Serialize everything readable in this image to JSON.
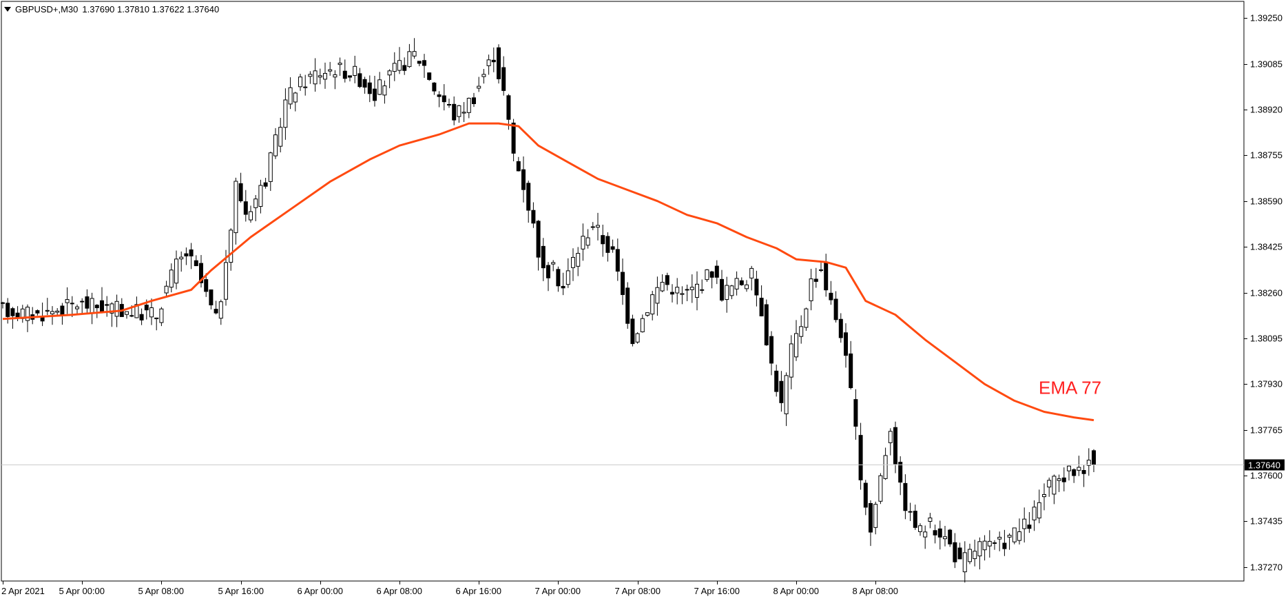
{
  "header": {
    "symbol": "GBPUSD+,M30",
    "ohlc": "1.37690 1.37810 1.37622 1.37640"
  },
  "colors": {
    "background": "#ffffff",
    "ema": "#ff4a10",
    "ema_label": "#ff1f1f",
    "bull_body": "#ffffff",
    "bear_body": "#000000",
    "wick": "#000000",
    "grid": "#cccccc"
  },
  "chart_data": {
    "type": "candlestick",
    "title": "GBPUSD+,M30",
    "ylim": [
      1.3722,
      1.3931
    ],
    "price_ticks": [
      "1.39250",
      "1.39085",
      "1.38920",
      "1.38755",
      "1.38590",
      "1.38425",
      "1.38260",
      "1.38095",
      "1.37930",
      "1.37765",
      "1.37600",
      "1.37435",
      "1.37270"
    ],
    "time_ticks": [
      "2 Apr 2021",
      "5 Apr 00:00",
      "5 Apr 08:00",
      "5 Apr 16:00",
      "6 Apr 00:00",
      "6 Apr 08:00",
      "6 Apr 16:00",
      "7 Apr 00:00",
      "7 Apr 08:00",
      "7 Apr 16:00",
      "8 Apr 00:00",
      "8 Apr 08:00"
    ],
    "bars_per_time_tick": 16,
    "current_price": "1.37640",
    "indicator_label": "EMA 77",
    "price_path": [
      [
        0,
        1.382
      ],
      [
        8,
        1.3818
      ],
      [
        16,
        1.3822
      ],
      [
        24,
        1.382
      ],
      [
        32,
        1.3818
      ],
      [
        34,
        1.3828
      ],
      [
        36,
        1.3836
      ],
      [
        38,
        1.384
      ],
      [
        40,
        1.3834
      ],
      [
        42,
        1.3825
      ],
      [
        44,
        1.3816
      ],
      [
        46,
        1.3834
      ],
      [
        48,
        1.3865
      ],
      [
        50,
        1.3855
      ],
      [
        52,
        1.386
      ],
      [
        54,
        1.3867
      ],
      [
        56,
        1.388
      ],
      [
        58,
        1.3895
      ],
      [
        60,
        1.39
      ],
      [
        64,
        1.3905
      ],
      [
        68,
        1.3907
      ],
      [
        72,
        1.3905
      ],
      [
        76,
        1.3898
      ],
      [
        80,
        1.3906
      ],
      [
        84,
        1.3912
      ],
      [
        86,
        1.3908
      ],
      [
        88,
        1.39
      ],
      [
        90,
        1.3895
      ],
      [
        92,
        1.389
      ],
      [
        94,
        1.3893
      ],
      [
        96,
        1.3897
      ],
      [
        98,
        1.3905
      ],
      [
        100,
        1.3912
      ],
      [
        102,
        1.3898
      ],
      [
        104,
        1.3876
      ],
      [
        106,
        1.3865
      ],
      [
        108,
        1.385
      ],
      [
        110,
        1.3833
      ],
      [
        112,
        1.3834
      ],
      [
        114,
        1.3828
      ],
      [
        116,
        1.3838
      ],
      [
        118,
        1.3845
      ],
      [
        120,
        1.3851
      ],
      [
        122,
        1.3845
      ],
      [
        124,
        1.384
      ],
      [
        126,
        1.3825
      ],
      [
        128,
        1.381
      ],
      [
        130,
        1.3817
      ],
      [
        132,
        1.3825
      ],
      [
        134,
        1.383
      ],
      [
        136,
        1.3828
      ],
      [
        138,
        1.3825
      ],
      [
        140,
        1.3827
      ],
      [
        142,
        1.383
      ],
      [
        144,
        1.3834
      ],
      [
        146,
        1.3826
      ],
      [
        148,
        1.3828
      ],
      [
        150,
        1.383
      ],
      [
        152,
        1.3832
      ],
      [
        154,
        1.382
      ],
      [
        156,
        1.38
      ],
      [
        158,
        1.3785
      ],
      [
        160,
        1.3805
      ],
      [
        162,
        1.3815
      ],
      [
        164,
        1.383
      ],
      [
        166,
        1.3835
      ],
      [
        168,
        1.3822
      ],
      [
        170,
        1.3812
      ],
      [
        172,
        1.379
      ],
      [
        174,
        1.376
      ],
      [
        176,
        1.374
      ],
      [
        178,
        1.376
      ],
      [
        180,
        1.3778
      ],
      [
        182,
        1.3755
      ],
      [
        184,
        1.3745
      ],
      [
        186,
        1.374
      ],
      [
        188,
        1.3742
      ],
      [
        190,
        1.374
      ],
      [
        192,
        1.3735
      ],
      [
        194,
        1.3728
      ],
      [
        196,
        1.3732
      ],
      [
        198,
        1.3735
      ],
      [
        200,
        1.3734
      ],
      [
        202,
        1.3735
      ],
      [
        204,
        1.3738
      ],
      [
        206,
        1.374
      ],
      [
        208,
        1.3743
      ],
      [
        210,
        1.375
      ],
      [
        212,
        1.3756
      ],
      [
        214,
        1.3758
      ],
      [
        216,
        1.3761
      ],
      [
        218,
        1.3763
      ],
      [
        220,
        1.3764
      ]
    ],
    "series": [
      {
        "name": "EMA 77",
        "points": [
          [
            0,
            1.38165
          ],
          [
            14,
            1.3818
          ],
          [
            24,
            1.38195
          ],
          [
            30,
            1.3823
          ],
          [
            34,
            1.3825
          ],
          [
            38,
            1.3827
          ],
          [
            42,
            1.3834
          ],
          [
            50,
            1.3846
          ],
          [
            58,
            1.3856
          ],
          [
            66,
            1.3866
          ],
          [
            74,
            1.3874
          ],
          [
            80,
            1.3879
          ],
          [
            88,
            1.3883
          ],
          [
            94,
            1.3887
          ],
          [
            100,
            1.3887
          ],
          [
            104,
            1.3886
          ],
          [
            108,
            1.3879
          ],
          [
            114,
            1.3873
          ],
          [
            120,
            1.3867
          ],
          [
            126,
            1.3863
          ],
          [
            132,
            1.3859
          ],
          [
            138,
            1.3854
          ],
          [
            144,
            1.3851
          ],
          [
            150,
            1.3846
          ],
          [
            156,
            1.3842
          ],
          [
            160,
            1.3838
          ],
          [
            166,
            1.3837
          ],
          [
            170,
            1.3835
          ],
          [
            174,
            1.3823
          ],
          [
            180,
            1.3818
          ],
          [
            186,
            1.3809
          ],
          [
            192,
            1.3801
          ],
          [
            198,
            1.3793
          ],
          [
            204,
            1.3787
          ],
          [
            210,
            1.3783
          ],
          [
            216,
            1.3781
          ],
          [
            220,
            1.378
          ]
        ]
      }
    ]
  }
}
